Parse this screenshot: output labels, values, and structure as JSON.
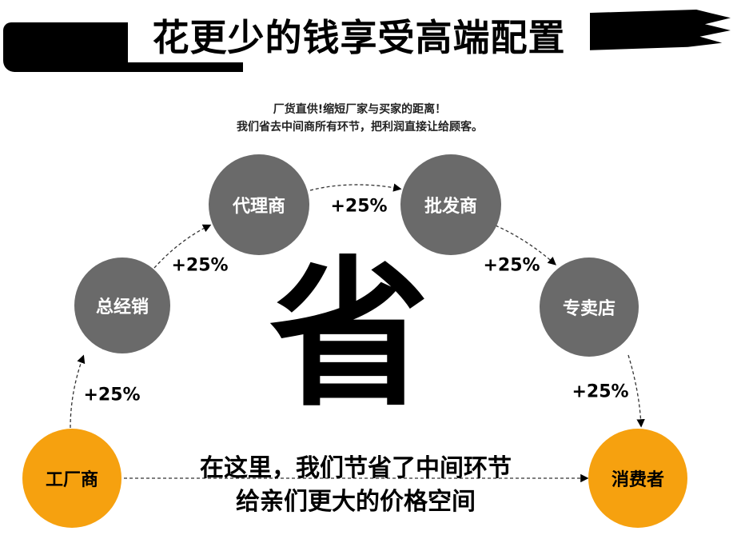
{
  "title": "花更少的钱享受高端配置",
  "subtitle": [
    "厂货直供!缩短厂家与买家的距离！",
    "我们省去中间商所有环节，把利润直接让给顾客。"
  ],
  "nodes": {
    "factory": "工厂商",
    "distributor": "总经销",
    "agent": "代理商",
    "wholesaler": "批发商",
    "store": "专卖店",
    "consumer": "消费者"
  },
  "markups": [
    "+25%",
    "+25%",
    "+25%",
    "+25%",
    "+25%"
  ],
  "center_char": "省",
  "bottom_text": [
    "在这里，我们节省了中间环节",
    "给亲们更大的价格空间"
  ],
  "colors": {
    "grey_node": "#6a6a6a",
    "orange_node": "#f6a10f"
  }
}
